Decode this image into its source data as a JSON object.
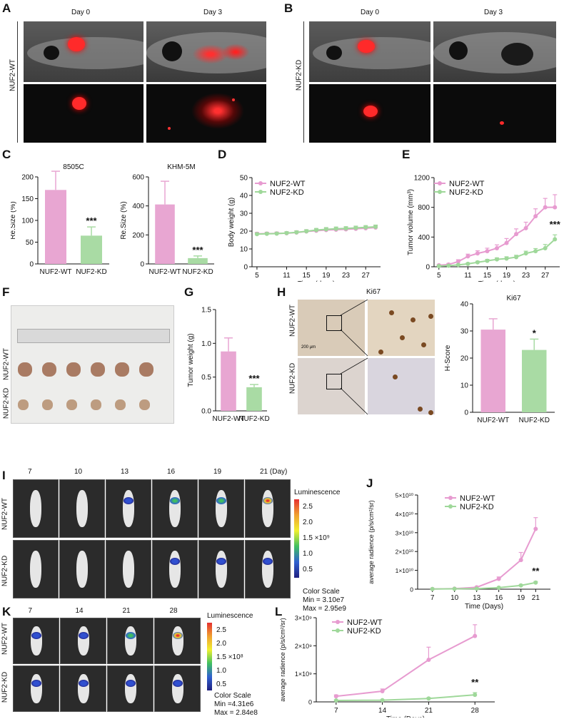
{
  "panels": {
    "A": {
      "letter": "A",
      "day0": "Day 0",
      "day3": "Day 3",
      "group": "NUF2-WT"
    },
    "B": {
      "letter": "B",
      "day0": "Day 0",
      "day3": "Day 3",
      "group": "NUF2-KD"
    },
    "C": {
      "letter": "C"
    },
    "D": {
      "letter": "D"
    },
    "E": {
      "letter": "E"
    },
    "F": {
      "letter": "F",
      "row1": "NUF2-WT",
      "row2": "NUF2-KD"
    },
    "G": {
      "letter": "G"
    },
    "H": {
      "letter": "H",
      "stain": "Ki67",
      "row1": "NUF2-WT",
      "row2": "NUF2-KD",
      "scale": "200 µm"
    },
    "I": {
      "letter": "I",
      "days": [
        "7",
        "10",
        "13",
        "16",
        "19",
        "21 (Day)"
      ],
      "row1": "NUF2-WT",
      "row2": "NUF2-KD",
      "scale_title": "Luminescence",
      "scale_ticks": [
        "2.5",
        "2.0",
        "1.5 ×10⁹",
        "1.0",
        "0.5"
      ],
      "scale_caption": "Color Scale",
      "scale_min": "Min = 3.10e7",
      "scale_max": "Max = 2.95e9"
    },
    "J": {
      "letter": "J"
    },
    "K": {
      "letter": "K",
      "days": [
        "7",
        "14",
        "21",
        "28"
      ],
      "row1": "NUF2-WT",
      "row2": "NUF2-KD",
      "scale_title": "Luminescence",
      "scale_ticks": [
        "2.5",
        "2.0",
        "1.5 ×10⁸",
        "1.0",
        "0.5"
      ],
      "scale_caption": "Color Scale",
      "scale_min": "Min =4.31e6",
      "scale_max": "Max = 2.84e8"
    },
    "L": {
      "letter": "L"
    }
  },
  "colors": {
    "wt": "#e8a6d2",
    "kd": "#a9dba4",
    "wt_line": "#e79bd0",
    "kd_line": "#9fd89a"
  },
  "chart_data": [
    {
      "id": "C1",
      "type": "bar",
      "title": "8505C",
      "ylabel": "Re.Size (%)",
      "categories": [
        "NUF2-WT",
        "NUF2-KD"
      ],
      "values": [
        170,
        65
      ],
      "errors": [
        43,
        20
      ],
      "ylim": [
        0,
        200
      ],
      "yticks": [
        0,
        50,
        100,
        150,
        200
      ],
      "annotation": "***"
    },
    {
      "id": "C2",
      "type": "bar",
      "title": "KHM-5M",
      "ylabel": "Re.Size (%)",
      "categories": [
        "NUF2-WT",
        "NUF2-KD"
      ],
      "values": [
        410,
        40
      ],
      "errors": [
        160,
        15
      ],
      "ylim": [
        0,
        600
      ],
      "yticks": [
        0,
        200,
        400,
        600
      ],
      "annotation": "***"
    },
    {
      "id": "D",
      "type": "line",
      "xlabel": "Time (days)",
      "ylabel": "Body weight (g)",
      "xlim": [
        4,
        30
      ],
      "ylim": [
        0,
        50
      ],
      "xticks": [
        5,
        11,
        15,
        19,
        23,
        27
      ],
      "yticks": [
        0,
        10,
        20,
        30,
        40,
        50
      ],
      "x": [
        5,
        7,
        9,
        11,
        13,
        15,
        17,
        19,
        21,
        23,
        25,
        27,
        29
      ],
      "series": [
        {
          "name": "NUF2-WT",
          "values": [
            18.5,
            18.6,
            18.7,
            18.8,
            19.2,
            19.8,
            20.2,
            20.6,
            20.8,
            21.0,
            21.3,
            21.6,
            22.0
          ],
          "errors": [
            0.8,
            0.8,
            0.8,
            0.9,
            1.0,
            1.0,
            1.0,
            1.0,
            1.0,
            1.0,
            1.0,
            1.0,
            1.0
          ]
        },
        {
          "name": "NUF2-KD",
          "values": [
            18.3,
            18.5,
            18.6,
            18.9,
            19.3,
            19.9,
            20.6,
            21.0,
            21.3,
            21.5,
            21.8,
            22.1,
            22.4
          ],
          "errors": [
            0.6,
            0.6,
            0.6,
            0.7,
            0.8,
            0.9,
            0.9,
            1.0,
            1.0,
            1.0,
            1.0,
            1.0,
            1.0
          ]
        }
      ],
      "legend": "top-left"
    },
    {
      "id": "E",
      "type": "line",
      "xlabel": "Time (days)",
      "ylabel": "Tumor volume (mm³)",
      "xlim": [
        4,
        30
      ],
      "ylim": [
        0,
        1200
      ],
      "xticks": [
        5,
        11,
        15,
        19,
        23,
        27
      ],
      "yticks": [
        0,
        400,
        800,
        1200
      ],
      "x": [
        5,
        7,
        9,
        11,
        13,
        15,
        17,
        19,
        21,
        23,
        25,
        27,
        29
      ],
      "series": [
        {
          "name": "NUF2-WT",
          "values": [
            20,
            30,
            70,
            140,
            180,
            210,
            250,
            320,
            440,
            520,
            680,
            800,
            800
          ],
          "errors": [
            10,
            15,
            25,
            30,
            35,
            40,
            45,
            60,
            70,
            80,
            100,
            120,
            170
          ]
        },
        {
          "name": "NUF2-KD",
          "values": [
            10,
            15,
            25,
            40,
            60,
            80,
            100,
            110,
            130,
            180,
            210,
            250,
            370
          ],
          "errors": [
            5,
            8,
            10,
            12,
            15,
            20,
            20,
            25,
            25,
            30,
            35,
            50,
            60
          ]
        }
      ],
      "legend": "top-left",
      "annotation": "***"
    },
    {
      "id": "G",
      "type": "bar",
      "ylabel": "Tumor weight (g)",
      "categories": [
        "NUF2-WT",
        "NUF2-KD"
      ],
      "values": [
        0.88,
        0.35
      ],
      "errors": [
        0.2,
        0.04
      ],
      "ylim": [
        0,
        1.5
      ],
      "yticks": [
        0.0,
        0.5,
        1.0,
        1.5
      ],
      "annotation": "***"
    },
    {
      "id": "H",
      "type": "bar",
      "title": "Ki67",
      "ylabel": "H-Score",
      "categories": [
        "NUF2-WT",
        "NUF2-KD"
      ],
      "values": [
        30.5,
        23
      ],
      "errors": [
        4,
        4
      ],
      "ylim": [
        0,
        40
      ],
      "yticks": [
        0,
        10,
        20,
        30,
        40
      ],
      "annotation": "*"
    },
    {
      "id": "J",
      "type": "line",
      "xlabel": "Time (Days)",
      "ylabel": "average radience (p/s/cm²/sr)",
      "xlim": [
        5,
        23
      ],
      "ylim": [
        0,
        50000000000.0
      ],
      "xticks": [
        7,
        10,
        13,
        16,
        19,
        21
      ],
      "ytick_labels": [
        "0",
        "1×10¹⁰",
        "2×10¹⁰",
        "3×10¹⁰",
        "4×10¹⁰",
        "5×10¹⁰"
      ],
      "yticks": [
        0,
        10000000000.0,
        20000000000.0,
        30000000000.0,
        40000000000.0,
        50000000000.0
      ],
      "x": [
        7,
        10,
        13,
        16,
        19,
        21
      ],
      "series": [
        {
          "name": "NUF2-WT",
          "values": [
            100000000.0,
            300000000.0,
            1000000000.0,
            5500000000.0,
            15500000000.0,
            32000000000.0
          ],
          "errors": [
            50000000.0,
            100000000.0,
            300000000.0,
            1000000000.0,
            4000000000.0,
            6000000000.0
          ]
        },
        {
          "name": "NUF2-KD",
          "values": [
            100000000.0,
            200000000.0,
            300000000.0,
            800000000.0,
            2000000000.0,
            3500000000.0
          ],
          "errors": [
            50000000.0,
            50000000.0,
            100000000.0,
            200000000.0,
            400000000.0,
            600000000.0
          ]
        }
      ],
      "legend": "top-left",
      "annotation": "**"
    },
    {
      "id": "L",
      "type": "line",
      "xlabel": "Time (Days)",
      "ylabel": "average radience (p/s/cm²/sr)",
      "xlim": [
        4,
        31
      ],
      "ylim": [
        0,
        3000000000.0
      ],
      "xticks": [
        7,
        14,
        21,
        28
      ],
      "ytick_labels": [
        "0",
        "1×10⁹",
        "2×10⁹",
        "3×10⁹"
      ],
      "yticks": [
        0,
        1000000000.0,
        2000000000.0,
        3000000000.0
      ],
      "x": [
        7,
        14,
        21,
        28
      ],
      "series": [
        {
          "name": "NUF2-WT",
          "values": [
            200000000.0,
            380000000.0,
            1500000000.0,
            2350000000.0
          ],
          "errors": [
            50000000.0,
            80000000.0,
            450000000.0,
            400000000.0
          ]
        },
        {
          "name": "NUF2-KD",
          "values": [
            50000000.0,
            60000000.0,
            120000000.0,
            250000000.0
          ],
          "errors": [
            20000000.0,
            20000000.0,
            30000000.0,
            80000000.0
          ]
        }
      ],
      "legend": "top-left",
      "annotation": "**"
    }
  ]
}
